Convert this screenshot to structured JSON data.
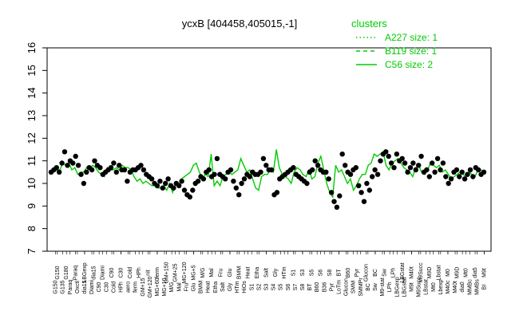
{
  "chart_data": {
    "type": "scatter",
    "title": "ycxB [404458,405015,-1]",
    "xlabel": "",
    "ylabel": "",
    "ylim": [
      7,
      16
    ],
    "y_ticks": [
      7,
      8,
      9,
      10,
      11,
      12,
      13,
      14,
      15,
      16
    ],
    "grid": false,
    "legend_position": "top-right",
    "legend": {
      "title": "clusters",
      "items": [
        {
          "label": "A227 size: 1",
          "style": "dotted",
          "color": "#00cc00"
        },
        {
          "label": "B119 size: 1",
          "style": "dashed",
          "color": "#00cc00"
        },
        {
          "label": "C56 size: 2",
          "style": "solid",
          "color": "#00cc00"
        }
      ]
    },
    "series_color": "#00cc00",
    "point_color": "#000000",
    "tick_labels_row1": [
      "G150",
      "G135",
      "Paraq",
      "Oxctl",
      "dia15",
      "Diami",
      "C90",
      "C30",
      "Cold",
      "HPh",
      "aero",
      "ferm",
      "GM+15",
      "GM+120",
      "MG+60",
      "MG+10",
      "M/G",
      "Mal",
      "Fru",
      "Glu",
      "BMM",
      "Heat",
      "Etha",
      "Salt",
      "Gly",
      "HTm",
      "HiOs",
      "S1",
      "S2",
      "S3",
      "S4",
      "S5",
      "S6",
      "S7",
      "S8",
      "BT",
      "B60",
      "B36",
      "Pyr",
      "LoTm",
      "Glucon",
      "SMM",
      "SMMPr",
      "BC",
      "Sw",
      "M9-stat",
      "LPh",
      "LBGexp",
      "LBGstat",
      "M9t",
      "M9Succ",
      "LBstat",
      "Mt0",
      "Lbexp",
      "M40c",
      "M40t",
      "dia0",
      "MMBc",
      "MMBs",
      "BI"
    ],
    "tick_labels_row2": [
      "G150",
      "G180",
      "Paraq",
      "LBGexp",
      "dia15",
      "Diami",
      "C90",
      "C30",
      "Cold",
      "HPh",
      "nit",
      "ferm",
      "GM+150",
      "GM+25",
      "MG+120",
      "MG+5",
      "M/G",
      "Mal",
      "Fru",
      "Glu",
      "BMM",
      "Heat",
      "Etha",
      "Salt",
      "Gly",
      "HTm",
      "S1",
      "S3",
      "S5",
      "S6",
      "S8",
      "BT",
      "B60",
      "Pyr",
      "Glucon",
      "BC",
      "Sw",
      "LPh",
      "LBGstat",
      "M40t",
      "M9Succ",
      "M9D",
      "Lbstat",
      "M0",
      "M9D",
      "Mt0",
      "dia5",
      "M9t"
    ],
    "line_C56": [
      10.5,
      10.5,
      10.6,
      10.6,
      10.9,
      10.8,
      10.9,
      10.6,
      10.7,
      10.4,
      10.5,
      10.5,
      10.7,
      10.6,
      10.8,
      10.7,
      10.5,
      10.4,
      10.3,
      10.7,
      10.6,
      10.6,
      10.7,
      10.6,
      10.8,
      10.7,
      10.7,
      10.6,
      10.3,
      10.1,
      10.2,
      10.0,
      10.1,
      10.0,
      9.9,
      9.9,
      9.8,
      9.8,
      9.9,
      9.7,
      10.0,
      9.6,
      10.0,
      9.9,
      10.2,
      10.3,
      10.4,
      10.5,
      10.8,
      10.9,
      10.5,
      10.2,
      10.4,
      10.3,
      11.3,
      9.9,
      10.1,
      9.9,
      10.3,
      10.4,
      10.5,
      10.4,
      10.5,
      10.6,
      11.1,
      10.8,
      10.5,
      10.6,
      10.2,
      9.8,
      9.7,
      10.3,
      10.4,
      10.4,
      10.6,
      10.5,
      11.5,
      10.7,
      10.4,
      10.3,
      10.2,
      10.0,
      10.5,
      10.7,
      10.6,
      10.4,
      10.3,
      10.6,
      10.2,
      10.3,
      10.9,
      11.2,
      10.6,
      10.0,
      9.6,
      9.4,
      10.8,
      10.5,
      10.6,
      10.3,
      10.0,
      10.2,
      9.7,
      9.9,
      10.2,
      10.4,
      10.4,
      10.8,
      10.9,
      11.3,
      11.2,
      11.3,
      11.4,
      10.8,
      10.6,
      10.9,
      11.0,
      11.1,
      10.9,
      10.7,
      10.6,
      10.5,
      10.3,
      10.7,
      10.8,
      10.5,
      10.4,
      10.6,
      10.9,
      10.8,
      10.7,
      10.8,
      10.5,
      10.6,
      10.4,
      10.2,
      10.3,
      10.4,
      10.5,
      10.4,
      10.3,
      10.5,
      10.4,
      10.3,
      10.6,
      10.6,
      10.4
    ],
    "points": [
      [
        1,
        10.5
      ],
      [
        2,
        10.6
      ],
      [
        3,
        10.7
      ],
      [
        4,
        10.5
      ],
      [
        5,
        10.9
      ],
      [
        6,
        11.4
      ],
      [
        7,
        10.8
      ],
      [
        8,
        11.0
      ],
      [
        9,
        10.9
      ],
      [
        10,
        11.2
      ],
      [
        11,
        10.8
      ],
      [
        12,
        10.4
      ],
      [
        13,
        10.0
      ],
      [
        14,
        10.5
      ],
      [
        15,
        10.7
      ],
      [
        16,
        10.6
      ],
      [
        17,
        11.0
      ],
      [
        18,
        10.8
      ],
      [
        19,
        10.7
      ],
      [
        20,
        10.4
      ],
      [
        21,
        10.5
      ],
      [
        22,
        10.6
      ],
      [
        23,
        10.7
      ],
      [
        24,
        10.9
      ],
      [
        25,
        10.5
      ],
      [
        26,
        10.8
      ],
      [
        27,
        10.6
      ],
      [
        28,
        10.6
      ],
      [
        29,
        10.1
      ],
      [
        30,
        10.5
      ],
      [
        31,
        10.6
      ],
      [
        32,
        10.6
      ],
      [
        33,
        10.7
      ],
      [
        34,
        10.8
      ],
      [
        35,
        10.6
      ],
      [
        36,
        10.4
      ],
      [
        37,
        10.3
      ],
      [
        38,
        10.2
      ],
      [
        39,
        10.0
      ],
      [
        40,
        9.9
      ],
      [
        41,
        10.1
      ],
      [
        42,
        9.8
      ],
      [
        43,
        10.0
      ],
      [
        44,
        10.2
      ],
      [
        45,
        9.9
      ],
      [
        46,
        9.8
      ],
      [
        47,
        10.0
      ],
      [
        48,
        9.9
      ],
      [
        49,
        10.1
      ],
      [
        50,
        9.7
      ],
      [
        51,
        9.5
      ],
      [
        52,
        9.4
      ],
      [
        53,
        9.7
      ],
      [
        54,
        10.0
      ],
      [
        55,
        10.1
      ],
      [
        56,
        10.3
      ],
      [
        57,
        10.2
      ],
      [
        58,
        10.5
      ],
      [
        59,
        10.6
      ],
      [
        60,
        10.3
      ],
      [
        61,
        10.4
      ],
      [
        62,
        11.1
      ],
      [
        63,
        10.4
      ],
      [
        64,
        10.3
      ],
      [
        65,
        10.2
      ],
      [
        66,
        10.5
      ],
      [
        67,
        10.6
      ],
      [
        68,
        10.1
      ],
      [
        69,
        9.8
      ],
      [
        70,
        9.5
      ],
      [
        71,
        10.0
      ],
      [
        72,
        10.2
      ],
      [
        73,
        10.4
      ],
      [
        74,
        10.3
      ],
      [
        75,
        10.5
      ],
      [
        76,
        10.4
      ],
      [
        77,
        10.4
      ],
      [
        78,
        10.5
      ],
      [
        79,
        11.1
      ],
      [
        80,
        10.8
      ],
      [
        81,
        10.6
      ],
      [
        82,
        10.6
      ],
      [
        83,
        9.5
      ],
      [
        84,
        9.6
      ],
      [
        85,
        10.2
      ],
      [
        86,
        10.3
      ],
      [
        87,
        10.4
      ],
      [
        88,
        10.5
      ],
      [
        89,
        10.6
      ],
      [
        90,
        10.7
      ],
      [
        91,
        10.4
      ],
      [
        92,
        10.3
      ],
      [
        93,
        10.2
      ],
      [
        94,
        10.1
      ],
      [
        95,
        10.0
      ],
      [
        96,
        10.5
      ],
      [
        97,
        10.6
      ],
      [
        98,
        11.0
      ],
      [
        99,
        10.8
      ],
      [
        100,
        10.6
      ],
      [
        101,
        10.5
      ],
      [
        102,
        10.5
      ],
      [
        103,
        10.2
      ],
      [
        104,
        9.6
      ],
      [
        105,
        9.2
      ],
      [
        106,
        8.95
      ],
      [
        107,
        9.45
      ],
      [
        108,
        11.3
      ],
      [
        109,
        10.8
      ],
      [
        110,
        10.5
      ],
      [
        111,
        10.4
      ],
      [
        112,
        10.6
      ],
      [
        113,
        10.7
      ],
      [
        114,
        9.9
      ],
      [
        115,
        9.6
      ],
      [
        116,
        9.2
      ],
      [
        117,
        10.0
      ],
      [
        118,
        9.7
      ],
      [
        119,
        10.3
      ],
      [
        120,
        10.6
      ],
      [
        121,
        10.4
      ],
      [
        122,
        11.0
      ],
      [
        123,
        11.3
      ],
      [
        124,
        11.4
      ],
      [
        125,
        11.2
      ],
      [
        126,
        10.9
      ],
      [
        127,
        10.7
      ],
      [
        128,
        11.3
      ],
      [
        129,
        11.0
      ],
      [
        130,
        11.1
      ],
      [
        131,
        10.9
      ],
      [
        132,
        10.5
      ],
      [
        133,
        10.7
      ],
      [
        134,
        10.9
      ],
      [
        135,
        10.6
      ],
      [
        136,
        10.8
      ],
      [
        137,
        11.2
      ],
      [
        138,
        10.5
      ],
      [
        139,
        10.6
      ],
      [
        140,
        10.3
      ],
      [
        141,
        10.9
      ],
      [
        142,
        10.5
      ],
      [
        143,
        11.1
      ],
      [
        144,
        10.6
      ],
      [
        145,
        10.9
      ],
      [
        146,
        10.3
      ],
      [
        147,
        10.0
      ],
      [
        148,
        10.2
      ],
      [
        149,
        10.5
      ],
      [
        150,
        10.6
      ],
      [
        151,
        10.3
      ],
      [
        152,
        10.5
      ],
      [
        153,
        10.2
      ],
      [
        154,
        10.4
      ],
      [
        155,
        10.6
      ],
      [
        156,
        10.3
      ],
      [
        157,
        10.7
      ],
      [
        158,
        10.6
      ],
      [
        159,
        10.4
      ],
      [
        160,
        10.5
      ]
    ]
  }
}
